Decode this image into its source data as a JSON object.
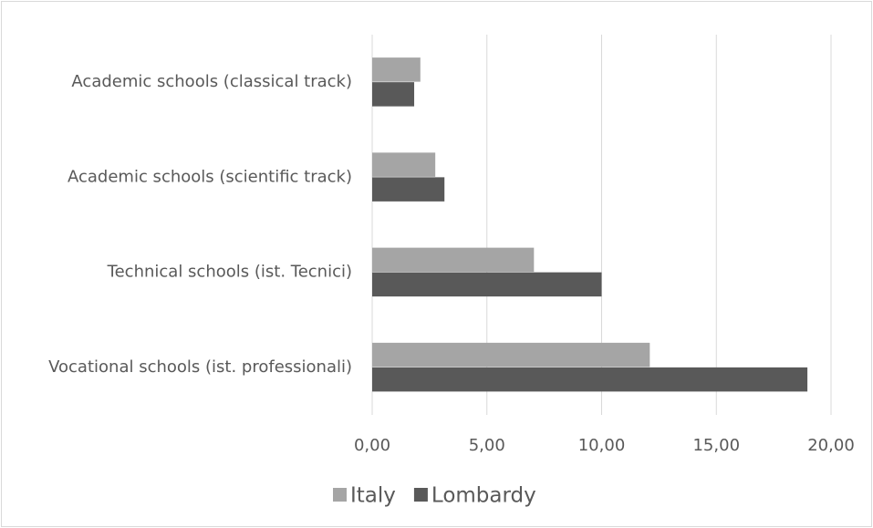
{
  "chart_data": {
    "type": "bar",
    "orientation": "horizontal",
    "categories": [
      "Academic schools (classical track)",
      "Academic schools (scientific track)",
      "Technical schools (ist. Tecnici)",
      "Vocational schools (ist. professionali)"
    ],
    "series": [
      {
        "name": "Italy",
        "color": "#a5a5a5",
        "values": [
          2.1,
          2.75,
          7.05,
          12.1
        ]
      },
      {
        "name": "Lombardy",
        "color": "#595959",
        "values": [
          1.83,
          3.15,
          10.0,
          18.97
        ]
      }
    ],
    "xlim": [
      0,
      20
    ],
    "xticks": [
      {
        "value": 0,
        "label": "0,00"
      },
      {
        "value": 5,
        "label": "5,00"
      },
      {
        "value": 10,
        "label": "10,00"
      },
      {
        "value": 15,
        "label": "15,00"
      },
      {
        "value": 20,
        "label": "20,00"
      }
    ],
    "grid": true,
    "legend": "bottom"
  }
}
